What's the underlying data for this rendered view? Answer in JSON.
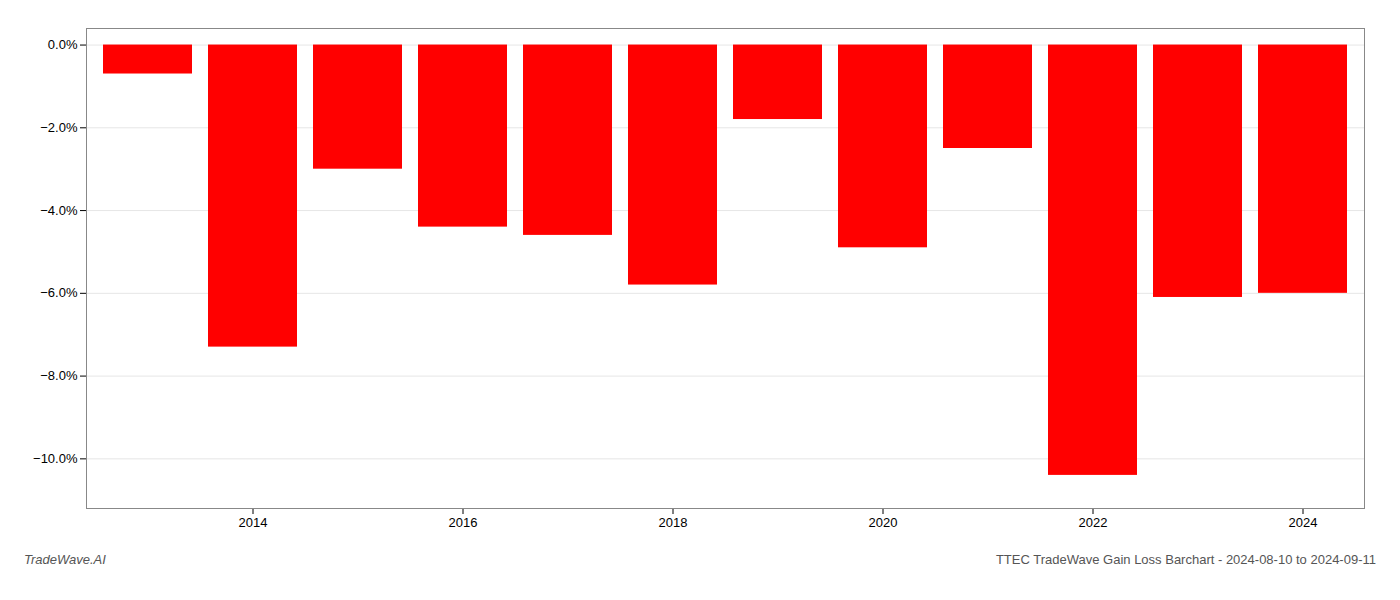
{
  "chart_data": {
    "type": "bar",
    "categories": [
      null,
      "2014",
      null,
      "2016",
      null,
      "2018",
      null,
      "2020",
      null,
      "2022",
      null,
      "2024"
    ],
    "values": [
      -0.007,
      -0.073,
      -0.03,
      -0.044,
      -0.046,
      -0.058,
      -0.018,
      -0.049,
      -0.025,
      -0.104,
      -0.061,
      -0.06
    ],
    "color": "#ff0000",
    "ylim": [
      -0.112,
      0.004
    ],
    "yticks": [
      {
        "value": 0.0,
        "label": "0.0%"
      },
      {
        "value": -0.02,
        "label": "−2.0%"
      },
      {
        "value": -0.04,
        "label": "−4.0%"
      },
      {
        "value": -0.06,
        "label": "−6.0%"
      },
      {
        "value": -0.08,
        "label": "−8.0%"
      },
      {
        "value": -0.1,
        "label": "−10.0%"
      }
    ],
    "grid": true,
    "annotations": [
      "TradeWave.AI",
      "TTEC TradeWave Gain Loss Barchart - 2024-08-10 to 2024-09-11"
    ]
  }
}
